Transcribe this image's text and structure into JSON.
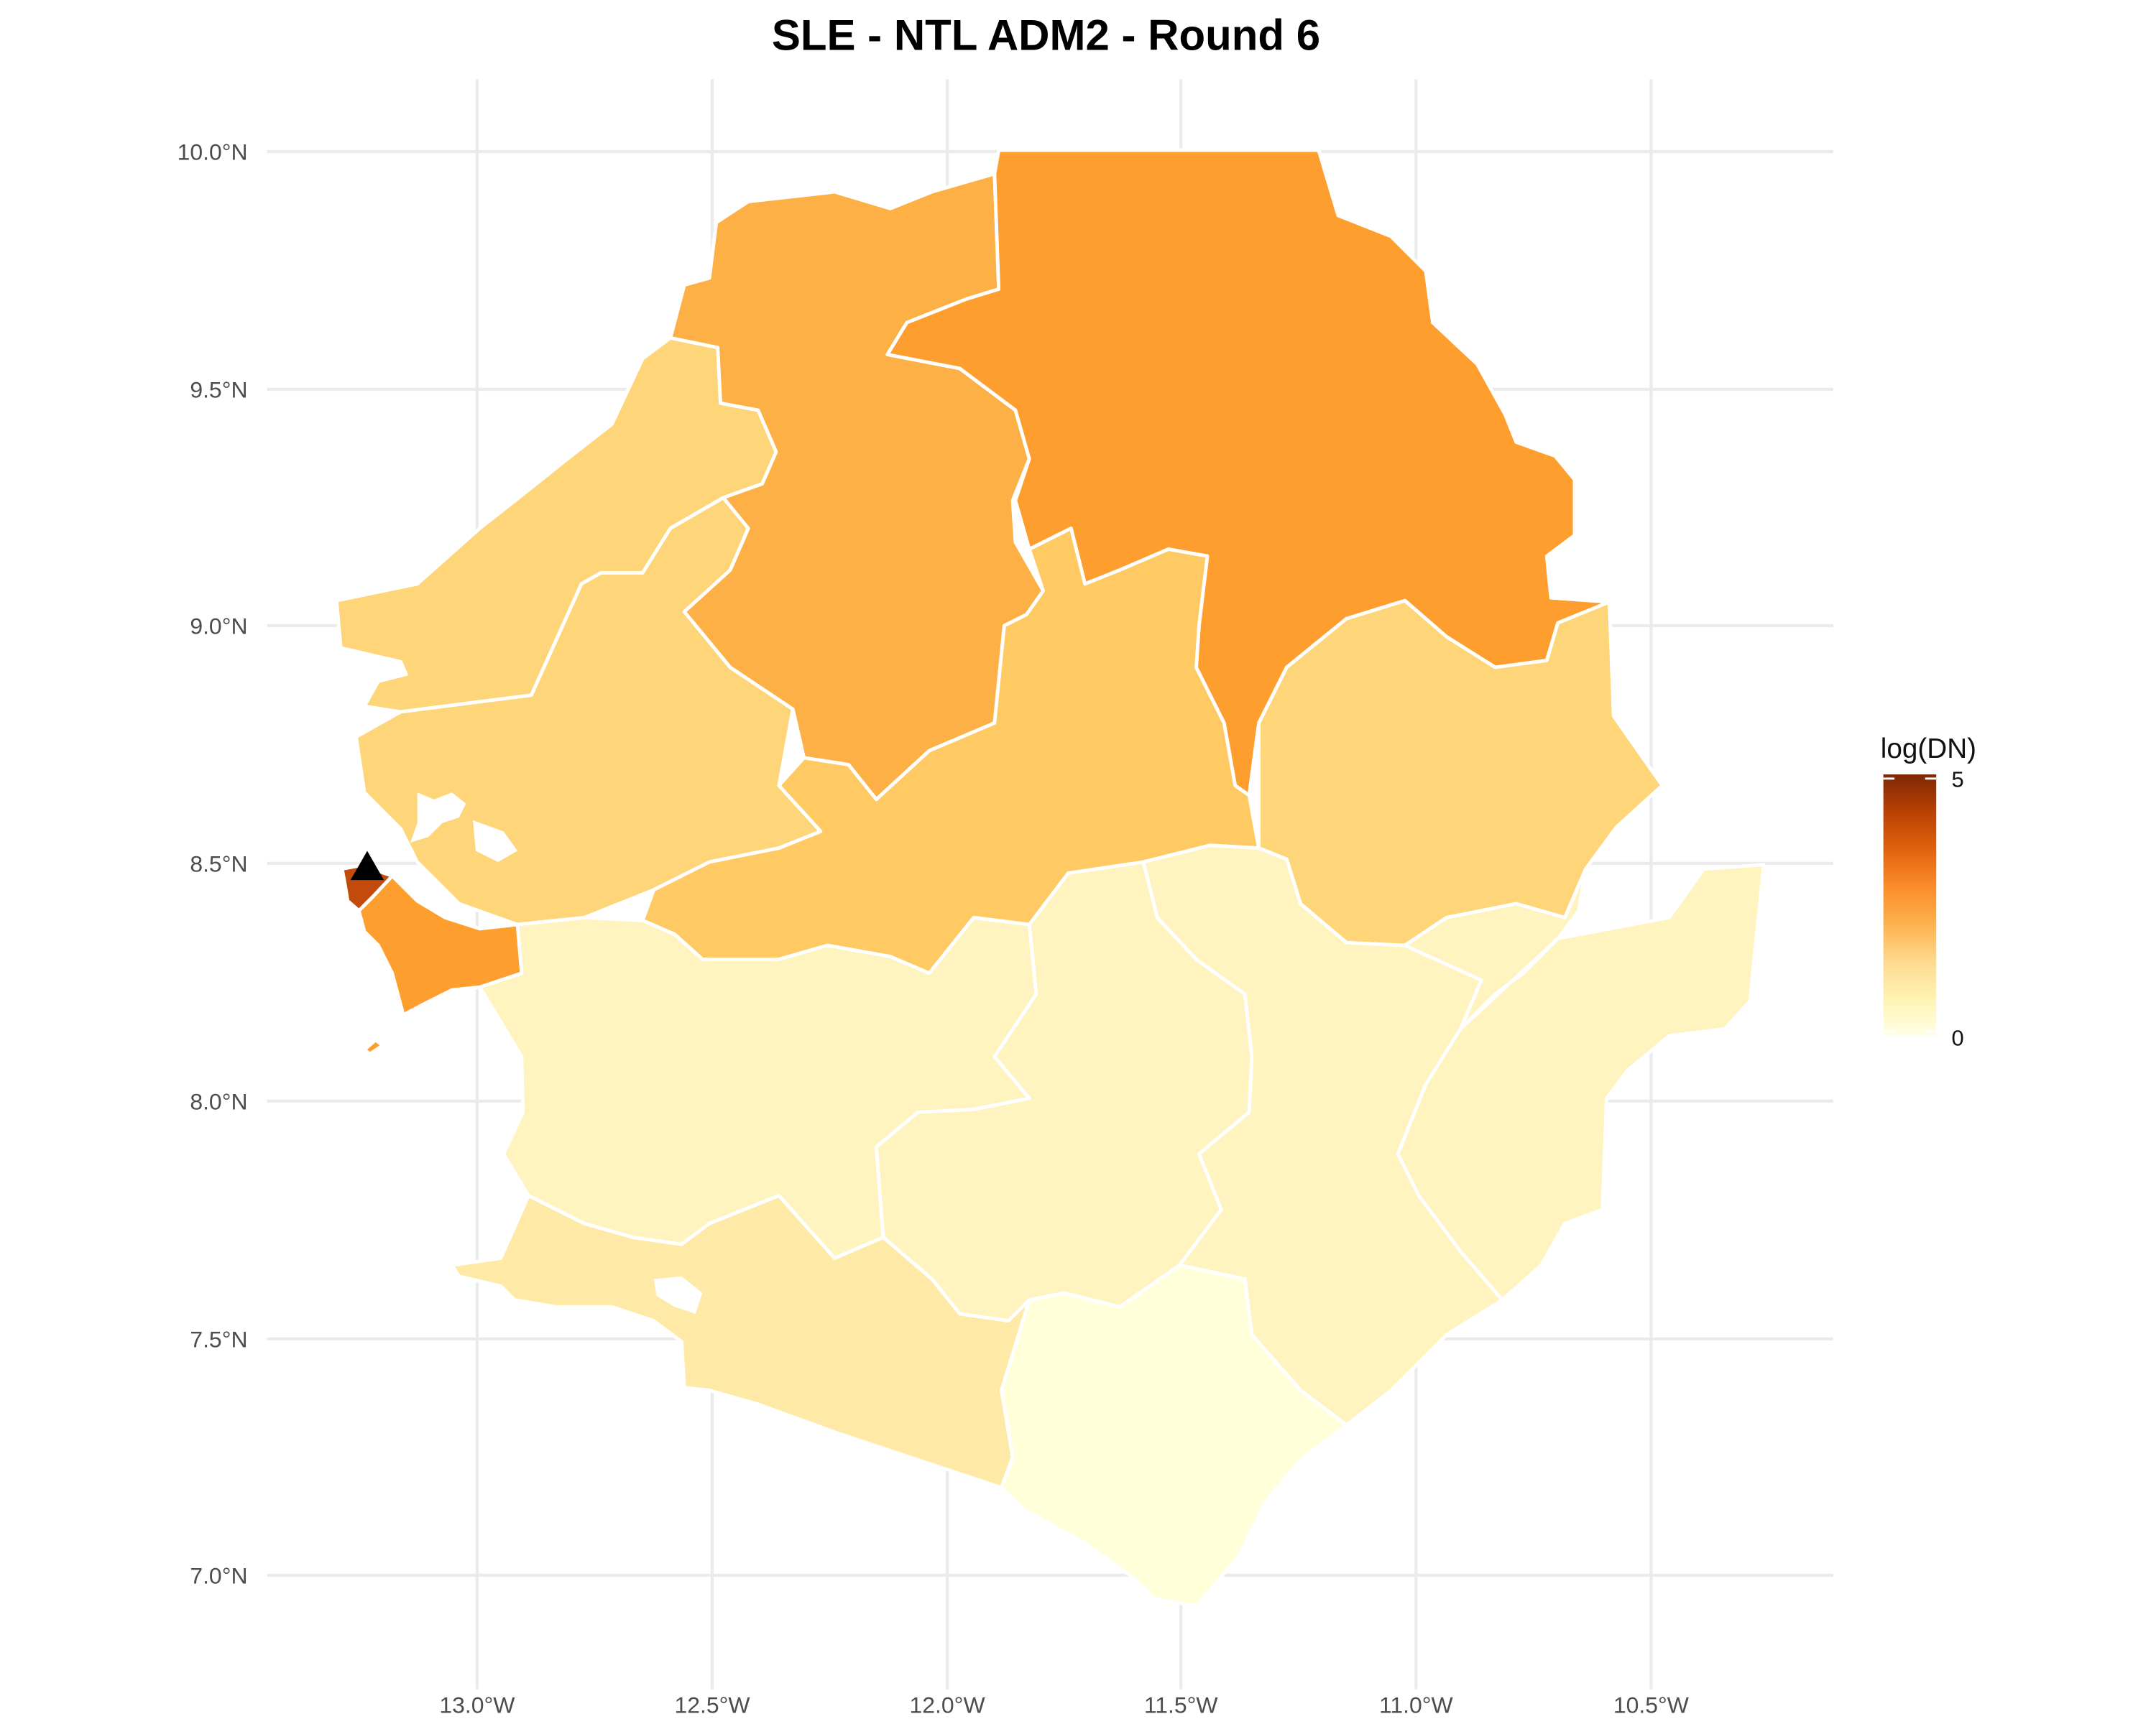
{
  "title": "SLE - NTL ADM2 - Round 6",
  "map": {
    "lat_ticks": [
      "7.0°N",
      "7.5°N",
      "8.0°N",
      "8.5°N",
      "9.0°N",
      "9.5°N",
      "10.0°N"
    ],
    "lon_ticks": [
      "13.0°W",
      "12.5°W",
      "12.0°W",
      "11.5°W",
      "11.0°W",
      "10.5°W"
    ],
    "colors": {
      "level_0": "#ffffd9",
      "level_1": "#fff3bf",
      "level_2": "#ffe9a6",
      "level_3": "#ffd57a",
      "level_4": "#ffca64",
      "level_5": "#fdb046",
      "level_6": "#fd9e2e",
      "level_7": "#c24a0a",
      "level_8": "#7a2a05"
    },
    "marker": {
      "symbol": "black-triangle",
      "color": "#000000"
    }
  },
  "legend": {
    "title": "log(DN)",
    "max_label": "5",
    "min_label": "0",
    "color_stops": [
      "#ffffe5",
      "#fff2b2",
      "#fed98e",
      "#fdb14d",
      "#fb8c2b",
      "#e0620f",
      "#b84104",
      "#7f2704"
    ]
  }
}
